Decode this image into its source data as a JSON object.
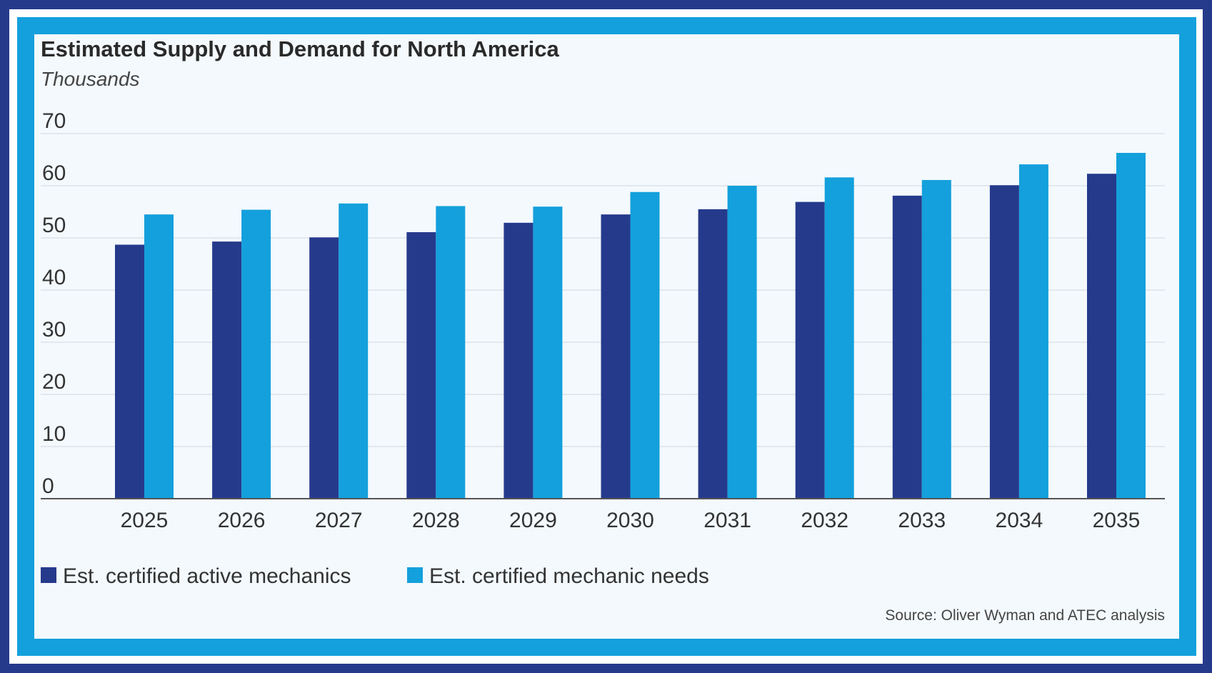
{
  "colors": {
    "outer_border": "#263a8c",
    "accent_border": "#14a0dc",
    "background": "#f3f9fd",
    "gridline": "#dde3ea",
    "axis": "#555555"
  },
  "chart_data": {
    "type": "bar",
    "title": "Estimated Supply and Demand for North America",
    "subtitle": "Thousands",
    "xlabel": "",
    "ylabel": "",
    "categories": [
      "2025",
      "2026",
      "2027",
      "2028",
      "2029",
      "2030",
      "2031",
      "2032",
      "2033",
      "2034",
      "2035"
    ],
    "ylim": [
      0,
      70
    ],
    "yticks": [
      0,
      10,
      20,
      30,
      40,
      50,
      60,
      70
    ],
    "grid": true,
    "legend_position": "bottom-left",
    "series": [
      {
        "name": "Est. certified active mechanics",
        "color": "#263a8c",
        "values": [
          48.7,
          49.3,
          50.1,
          51.1,
          52.9,
          54.5,
          55.5,
          56.9,
          58.1,
          60.1,
          62.3
        ]
      },
      {
        "name": "Est. certified mechanic needs",
        "color": "#14a0dc",
        "values": [
          54.5,
          55.4,
          56.6,
          56.1,
          56.0,
          58.8,
          60.0,
          61.6,
          61.1,
          64.1,
          66.3
        ]
      }
    ],
    "source": "Source: Oliver Wyman and ATEC analysis"
  }
}
